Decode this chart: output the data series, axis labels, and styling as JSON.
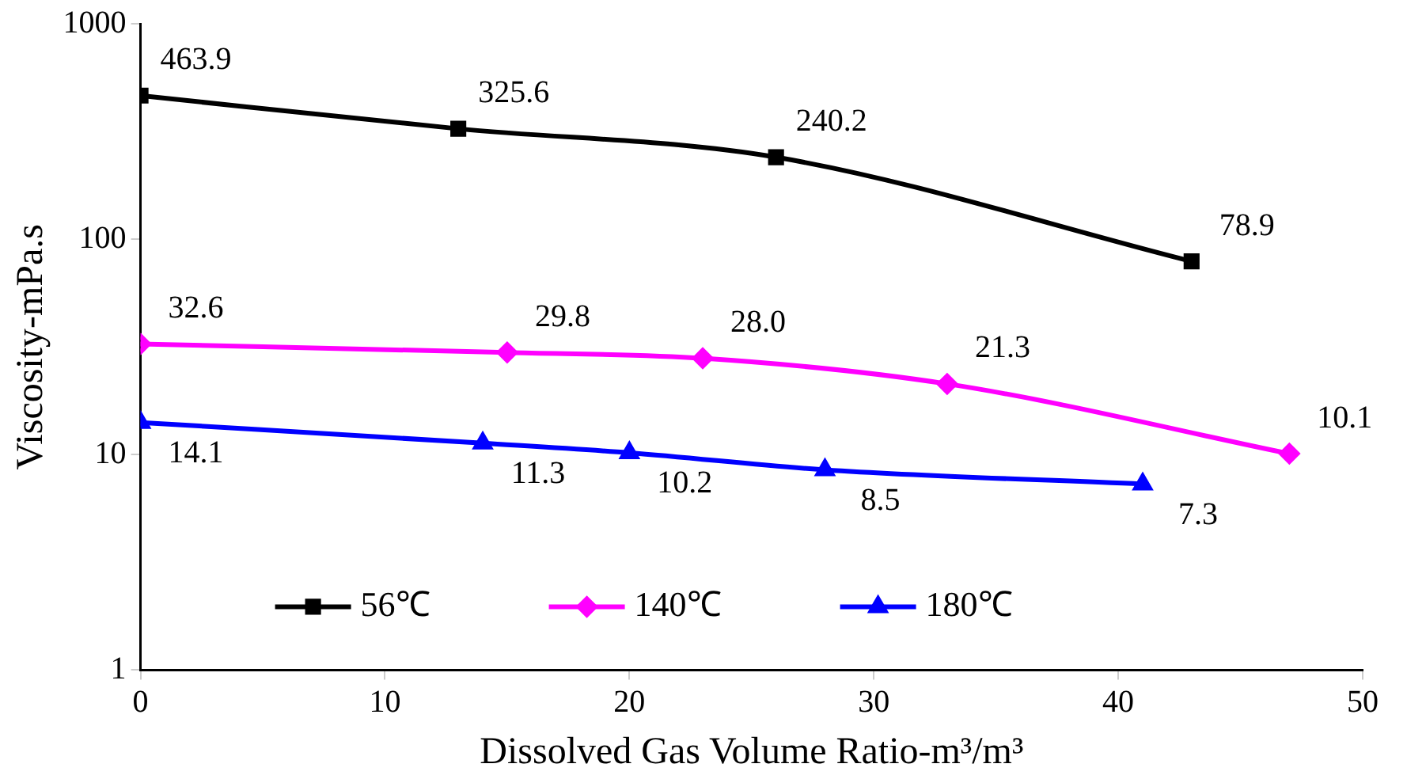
{
  "chart_data": {
    "type": "line",
    "xlabel": "Dissolved Gas Volume Ratio-m³/m³",
    "ylabel": "Viscosity-mPa.s",
    "log": "y",
    "xlim": [
      0,
      50
    ],
    "xticks": [
      0,
      10,
      20,
      30,
      40,
      50
    ],
    "ylim": [
      1,
      1000
    ],
    "yticks": [
      1,
      10,
      100,
      1000
    ],
    "grid": false,
    "legend": "bottom",
    "line_style": "solid",
    "series": [
      {
        "name": "56℃",
        "color": "#000000",
        "marker": "square",
        "x": [
          0,
          13,
          26,
          43
        ],
        "values": [
          463.9,
          325.6,
          240.2,
          78.9
        ],
        "value_labels": [
          "463.9",
          "325.6",
          "240.2",
          "78.9"
        ]
      },
      {
        "name": "140℃",
        "color": "#ff00ff",
        "marker": "diamond",
        "x": [
          0,
          15,
          23,
          33,
          47
        ],
        "values": [
          32.6,
          29.8,
          28.0,
          21.3,
          10.1
        ],
        "value_labels": [
          "32.6",
          "29.8",
          "28.0",
          "21.3",
          "10.1"
        ]
      },
      {
        "name": "180℃",
        "color": "#0000ff",
        "marker": "triangle",
        "x": [
          0,
          14,
          20,
          28,
          41
        ],
        "values": [
          14.1,
          11.3,
          10.2,
          8.5,
          7.3
        ],
        "value_labels": [
          "14.1",
          "11.3",
          "10.2",
          "8.5",
          "7.3"
        ]
      }
    ]
  }
}
